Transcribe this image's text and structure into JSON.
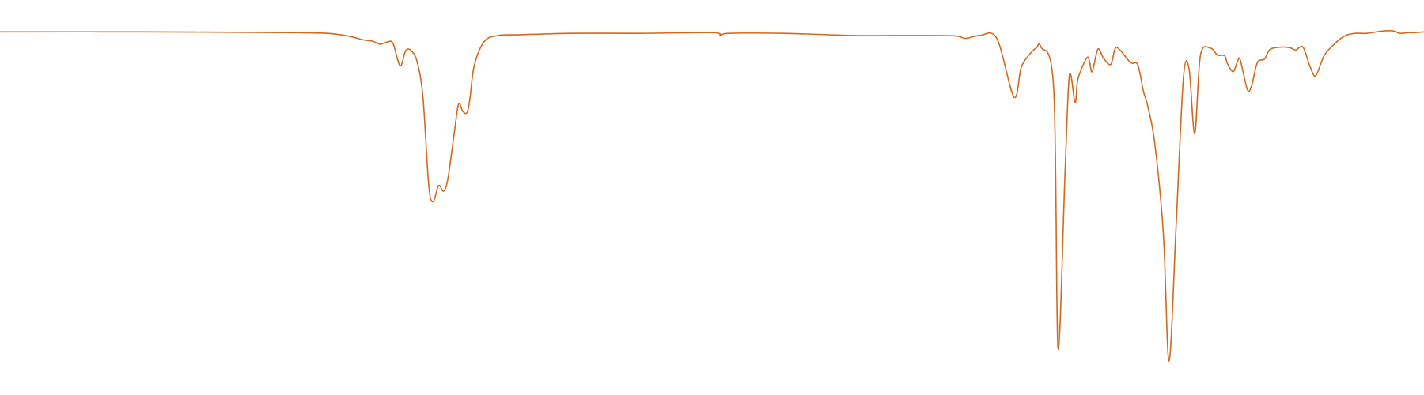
{
  "chart_data": {
    "type": "line",
    "title": "",
    "xlabel": "",
    "ylabel": "",
    "grid": false,
    "legend": "none",
    "x_range": [
      0,
      1000
    ],
    "y_range": [
      0,
      100
    ],
    "series": [
      {
        "color": "#d2691e",
        "points": [
          [
            0,
            96.0
          ],
          [
            100,
            96.0
          ],
          [
            200,
            95.8
          ],
          [
            230,
            95.6
          ],
          [
            245,
            94.8
          ],
          [
            255,
            93.8
          ],
          [
            262,
            93.4
          ],
          [
            267,
            92.6
          ],
          [
            272,
            93.2
          ],
          [
            276,
            92.8
          ],
          [
            281,
            86.6
          ],
          [
            285,
            90.9
          ],
          [
            289,
            90.7
          ],
          [
            293,
            87.6
          ],
          [
            297,
            78.0
          ],
          [
            301,
            54.0
          ],
          [
            304,
            49.0
          ],
          [
            308,
            53.5
          ],
          [
            311,
            52.0
          ],
          [
            313,
            52.9
          ],
          [
            315,
            56.5
          ],
          [
            319,
            68.0
          ],
          [
            322,
            76.0
          ],
          [
            325,
            74.0
          ],
          [
            328,
            73.7
          ],
          [
            330,
            77.5
          ],
          [
            333,
            86.6
          ],
          [
            340,
            93.3
          ],
          [
            350,
            95.0
          ],
          [
            365,
            95.2
          ],
          [
            400,
            95.6
          ],
          [
            450,
            95.6
          ],
          [
            500,
            95.8
          ],
          [
            506,
            95.0
          ],
          [
            512,
            95.6
          ],
          [
            550,
            95.6
          ],
          [
            600,
            95.0
          ],
          [
            640,
            95.0
          ],
          [
            670,
            94.9
          ],
          [
            678,
            94.2
          ],
          [
            688,
            95.0
          ],
          [
            700,
            94.2
          ],
          [
            712,
            78.0
          ],
          [
            717,
            86.0
          ],
          [
            722,
            89.3
          ],
          [
            728,
            91.7
          ],
          [
            731,
            91.8
          ],
          [
            740,
            80.0
          ],
          [
            743,
            8.5
          ],
          [
            748,
            58.0
          ],
          [
            751,
            84.0
          ],
          [
            755,
            76.5
          ],
          [
            757,
            83.0
          ],
          [
            763,
            88.7
          ],
          [
            765,
            88.0
          ],
          [
            767,
            85.0
          ],
          [
            771,
            91.2
          ],
          [
            775,
            88.7
          ],
          [
            780,
            87.0
          ],
          [
            783,
            91.3
          ],
          [
            786,
            91.2
          ],
          [
            794,
            87.5
          ],
          [
            799,
            86.9
          ],
          [
            803,
            79.5
          ],
          [
            806,
            75.5
          ],
          [
            811,
            65.0
          ],
          [
            817,
            40.0
          ],
          [
            821,
            5.0
          ],
          [
            826,
            43.0
          ],
          [
            831,
            83.0
          ],
          [
            835,
            85.8
          ],
          [
            839,
            68.0
          ],
          [
            843,
            89.5
          ],
          [
            850,
            91.5
          ],
          [
            855,
            89.6
          ],
          [
            860,
            89.4
          ],
          [
            862,
            87.2
          ],
          [
            866,
            85.0
          ],
          [
            869,
            87.8
          ],
          [
            871,
            88.2
          ],
          [
            876,
            80.0
          ],
          [
            879,
            81.2
          ],
          [
            883,
            87.5
          ],
          [
            888,
            88.5
          ],
          [
            892,
            91.2
          ],
          [
            900,
            91.8
          ],
          [
            906,
            91.6
          ],
          [
            910,
            91.0
          ],
          [
            915,
            91.8
          ],
          [
            920,
            86.4
          ],
          [
            924,
            83.9
          ],
          [
            930,
            89.5
          ],
          [
            938,
            93.0
          ],
          [
            945,
            95.0
          ],
          [
            952,
            95.6
          ],
          [
            960,
            95.6
          ],
          [
            970,
            96.2
          ],
          [
            978,
            96.3
          ],
          [
            983,
            95.6
          ],
          [
            989,
            95.8
          ],
          [
            993,
            95.8
          ],
          [
            1000,
            96.0
          ]
        ]
      }
    ]
  }
}
